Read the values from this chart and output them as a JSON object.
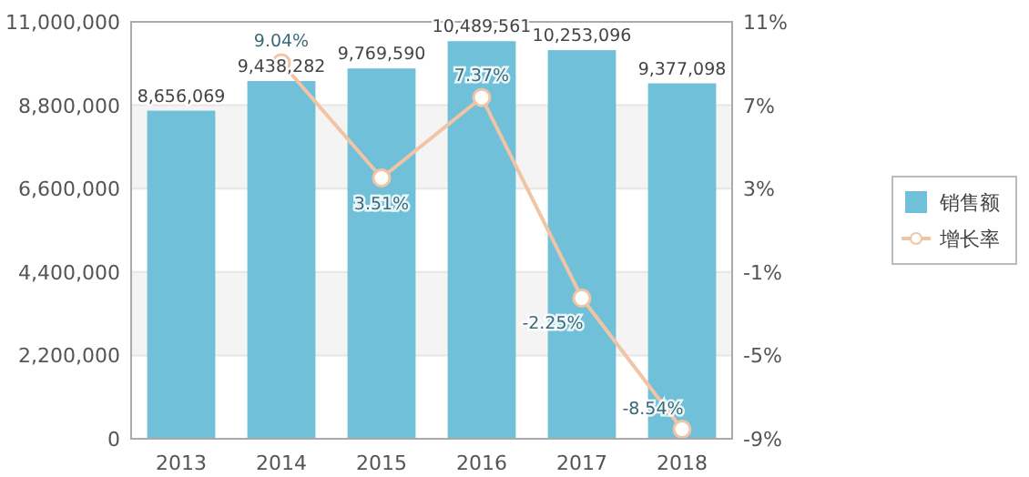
{
  "chart_data": {
    "type": "bar",
    "categories": [
      "2013",
      "2014",
      "2015",
      "2016",
      "2017",
      "2018"
    ],
    "series": [
      {
        "name": "销售额",
        "color": "#6fc0d8",
        "values": [
          8656069,
          9438282,
          9769590,
          10489561,
          10253096,
          9377098
        ],
        "value_labels": [
          "8,656,069",
          "9,438,282",
          "9,769,590",
          "10,489,561",
          "10,253,096",
          "9,377,098"
        ]
      },
      {
        "name": "增长率",
        "type": "line",
        "axis": "y2",
        "color": "#f0c4a4",
        "marker": "circle",
        "values": [
          null,
          9.04,
          3.51,
          7.37,
          -2.25,
          -8.54
        ],
        "value_labels": [
          null,
          "9.04%",
          "3.51%",
          "7.37%",
          "-2.25%",
          "-8.54%"
        ]
      }
    ],
    "ylim": [
      0,
      11000000
    ],
    "yticks": [
      {
        "value": 0,
        "label": "0"
      },
      {
        "value": 2200000,
        "label": "2,200,000"
      },
      {
        "value": 4400000,
        "label": "4,400,000"
      },
      {
        "value": 6600000,
        "label": "6,600,000"
      },
      {
        "value": 8800000,
        "label": "8,800,000"
      },
      {
        "value": 11000000,
        "label": "11,000,000"
      }
    ],
    "y2lim": [
      -9,
      11
    ],
    "y2ticks": [
      {
        "value": -9,
        "label": "-9%"
      },
      {
        "value": -5,
        "label": "-5%"
      },
      {
        "value": -1,
        "label": "-1%"
      },
      {
        "value": 3,
        "label": "3%"
      },
      {
        "value": 7,
        "label": "7%"
      },
      {
        "value": 11,
        "label": "11%"
      }
    ],
    "grid": "y",
    "legend": "right"
  }
}
